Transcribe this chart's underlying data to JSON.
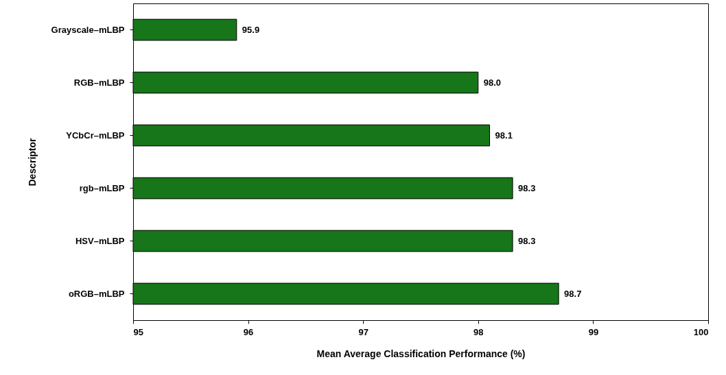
{
  "chart_data": {
    "type": "bar",
    "orientation": "horizontal",
    "xlabel": "Mean Average Classification Performance (%)",
    "ylabel": "Descriptor",
    "categories": [
      "Grayscale–mLBP",
      "RGB–mLBP",
      "YCbCr–mLBP",
      "rgb–mLBP",
      "HSV–mLBP",
      "oRGB–mLBP"
    ],
    "values": [
      95.9,
      98.0,
      98.1,
      98.3,
      98.3,
      98.7
    ],
    "value_labels": [
      "95.9",
      "98.0",
      "98.1",
      "98.3",
      "98.3",
      "98.7"
    ],
    "color": "#17751a",
    "xlim": [
      95,
      100
    ],
    "xticks": [
      95,
      96,
      97,
      98,
      99,
      100
    ],
    "grid": false
  }
}
